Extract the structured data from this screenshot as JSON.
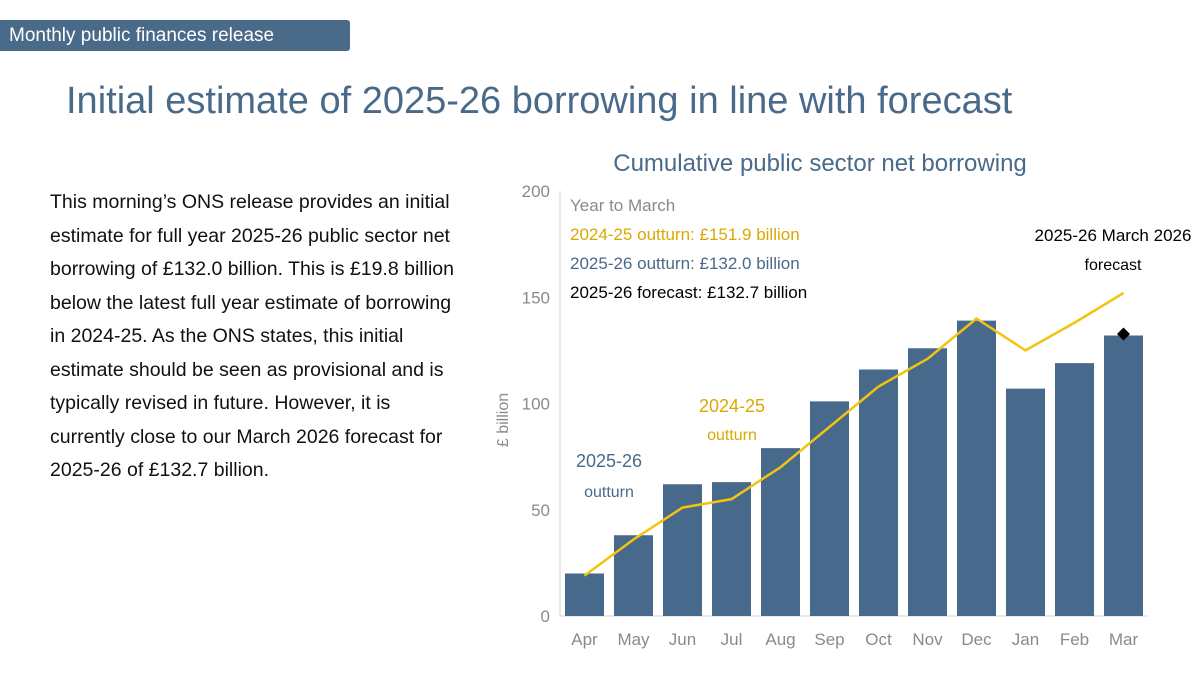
{
  "header": {
    "section_tag": "Monthly public finances release",
    "title": "Initial estimate of 2025-26 borrowing in line with forecast"
  },
  "body": {
    "paragraph": "This morning’s ONS release provides an initial estimate for full year 2025-26 public sector net borrowing of £132.0 billion. This is £19.8 billion below the latest full year estimate of borrowing in 2024-25. As the ONS states, this initial estimate should be seen as provisional and is typically revised in future. However, it is currently close to our March 2026 forecast for 2025-26 of £132.7 billion."
  },
  "colors": {
    "brand": "#4a6a8a",
    "bar": "#46698c",
    "line": "#f2c40f",
    "legend_outturn_2425": "#d9a900",
    "axis_text": "#8a8a8a",
    "forecast_marker": "#000000"
  },
  "chart_data": {
    "type": "bar",
    "title": "Cumulative public sector net borrowing",
    "xlabel": "",
    "ylabel": "£ billion",
    "ylim": [
      0,
      200
    ],
    "yticks": [
      0,
      50,
      100,
      150,
      200
    ],
    "categories": [
      "Apr",
      "May",
      "Jun",
      "Jul",
      "Aug",
      "Sep",
      "Oct",
      "Nov",
      "Dec",
      "Jan",
      "Feb",
      "Mar"
    ],
    "series": [
      {
        "name": "2025-26 outturn",
        "type": "bar",
        "values": [
          20,
          38,
          62,
          63,
          79,
          101,
          116,
          126,
          139,
          107,
          119,
          132
        ]
      },
      {
        "name": "2024-25 outturn",
        "type": "line",
        "values": [
          19,
          36,
          51,
          55,
          70,
          89,
          108,
          121,
          140,
          125,
          138,
          152
        ]
      },
      {
        "name": "2025-26 March 2026 forecast",
        "type": "marker",
        "category": "Mar",
        "value": 132.7
      }
    ],
    "legend": {
      "heading": "Year to March",
      "lines": [
        "2024-25 outturn: £151.9 billion",
        "2025-26 outturn: £132.0 billion",
        "2025-26 forecast: £132.7 billion"
      ]
    },
    "annotations": {
      "bar_label_line1": "2025-26",
      "bar_label_line2": "outturn",
      "line_label_line1": "2024-25",
      "line_label_line2": "outturn",
      "forecast_label_line1": "2025-26 March 2026",
      "forecast_label_line2": "forecast"
    },
    "grid": false,
    "legend_position": "top-left"
  }
}
